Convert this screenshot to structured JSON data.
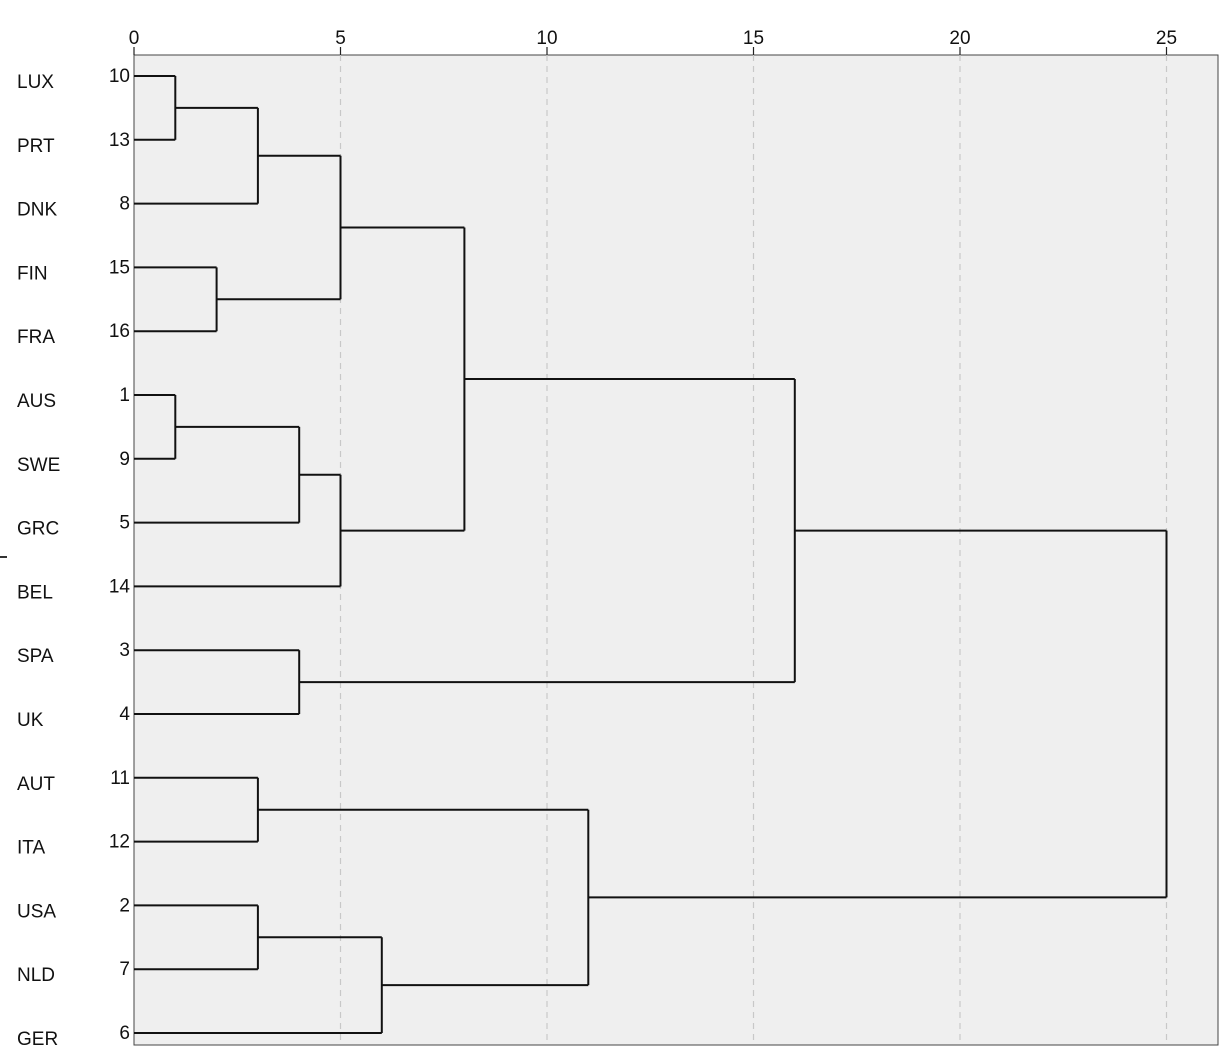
{
  "chart_data": {
    "type": "dendrogram",
    "title": "",
    "xlabel": "",
    "ylabel": "",
    "xlim": [
      0,
      26
    ],
    "x_ticks": [
      0,
      5,
      10,
      15,
      20,
      25
    ],
    "grid": "vertical-dashed",
    "leaves": [
      {
        "label": "LUX",
        "case": "10"
      },
      {
        "label": "PRT",
        "case": "13"
      },
      {
        "label": "DNK",
        "case": "8"
      },
      {
        "label": "FIN",
        "case": "15"
      },
      {
        "label": "FRA",
        "case": "16"
      },
      {
        "label": "AUS",
        "case": "1"
      },
      {
        "label": "SWE",
        "case": "9"
      },
      {
        "label": "GRC",
        "case": "5"
      },
      {
        "label": "BEL",
        "case": "14"
      },
      {
        "label": "SPA",
        "case": "3"
      },
      {
        "label": "UK",
        "case": "4"
      },
      {
        "label": "AUT",
        "case": "11"
      },
      {
        "label": "ITA",
        "case": "12"
      },
      {
        "label": "USA",
        "case": "2"
      },
      {
        "label": "NLD",
        "case": "7"
      },
      {
        "label": "GER",
        "case": "6"
      }
    ],
    "merges": [
      {
        "a": "L0",
        "b": "L1",
        "distance": 1
      },
      {
        "a": "M0",
        "b": "L2",
        "distance": 3
      },
      {
        "a": "L3",
        "b": "L4",
        "distance": 2
      },
      {
        "a": "M1",
        "b": "M2",
        "distance": 5
      },
      {
        "a": "L5",
        "b": "L6",
        "distance": 1
      },
      {
        "a": "M4",
        "b": "L7",
        "distance": 4
      },
      {
        "a": "M5",
        "b": "L8",
        "distance": 5
      },
      {
        "a": "M3",
        "b": "M6",
        "distance": 8
      },
      {
        "a": "L9",
        "b": "L10",
        "distance": 4
      },
      {
        "a": "M7",
        "b": "M8",
        "distance": 16
      },
      {
        "a": "L11",
        "b": "L12",
        "distance": 3
      },
      {
        "a": "L13",
        "b": "L14",
        "distance": 3
      },
      {
        "a": "M11",
        "b": "L15",
        "distance": 6
      },
      {
        "a": "M10",
        "b": "M12",
        "distance": 11
      },
      {
        "a": "M9",
        "b": "M13",
        "distance": 25
      }
    ],
    "colors": {
      "plot_bg": "#efefef",
      "line": "#111111",
      "grid": "#c8c8c8"
    }
  }
}
